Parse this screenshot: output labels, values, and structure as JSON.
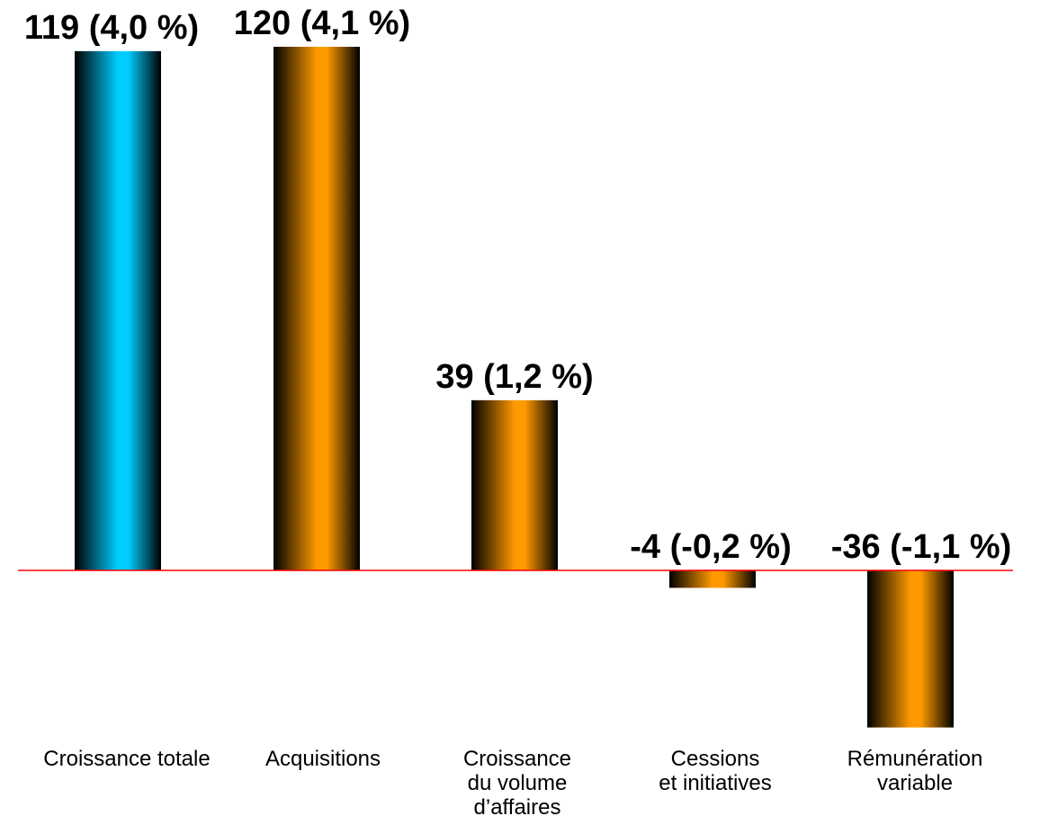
{
  "chart_data": {
    "type": "bar",
    "categories": [
      [
        "Croissance totale"
      ],
      [
        "Acquisitions"
      ],
      [
        "Croissance",
        "du volume",
        "d’affaires"
      ],
      [
        "Cessions",
        "et initiatives"
      ],
      [
        "Rémunération",
        "variable"
      ]
    ],
    "values": [
      119,
      120,
      39,
      -4,
      -36
    ],
    "data_labels": [
      "119 (4,0 %)",
      "120 (4,1 %)",
      "39 (1,2 %)",
      "-4 (-0,2 %)",
      "-36 (-1,1 %)"
    ],
    "ylim": [
      -36,
      120
    ],
    "grid": false,
    "legend": "none",
    "colors": {
      "total_bar": "#00ccff",
      "component_bar": "#ff9900",
      "bar_shade": "#000000",
      "baseline": "#ff0000"
    }
  }
}
